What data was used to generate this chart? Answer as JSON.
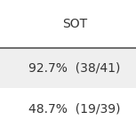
{
  "header": "SOT",
  "rows": [
    {
      "text": "92.7%  (38/41)",
      "bg": "#efefef"
    },
    {
      "text": "48.7%  (19/39)",
      "bg": "#ffffff"
    }
  ],
  "header_line_color": "#555555",
  "text_color": "#333333",
  "header_fontsize": 10,
  "row_fontsize": 10,
  "background_color": "#ffffff",
  "fig_width": 1.53,
  "fig_height": 1.53
}
